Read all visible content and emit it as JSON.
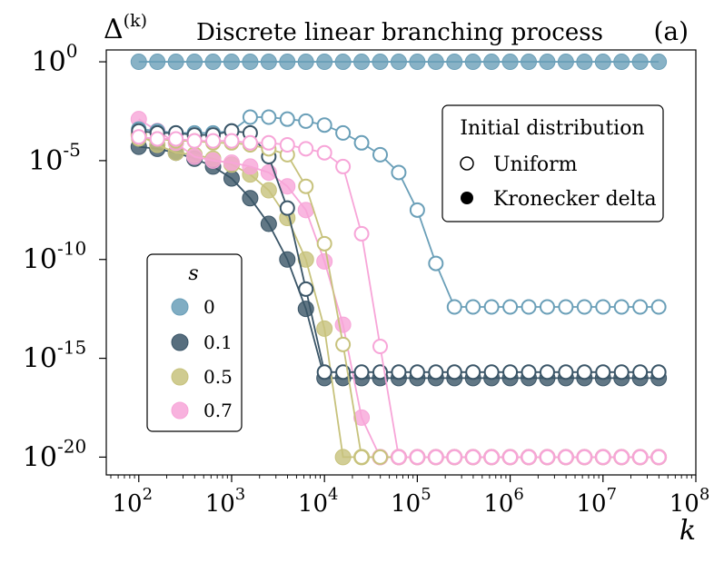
{
  "chart_data": {
    "type": "scatter",
    "title": "Discrete linear branching process",
    "panel_label": "(a)",
    "ylabel_base": "Δ",
    "ylabel_sup": "(k)",
    "xlabel": "k",
    "xscale": "log",
    "yscale": "log",
    "xlim_exp": [
      1.65,
      8.0
    ],
    "ylim_exp": [
      -20.9,
      0.6
    ],
    "x_ticks": [
      {
        "base": "10",
        "exp": "2"
      },
      {
        "base": "10",
        "exp": "3"
      },
      {
        "base": "10",
        "exp": "4"
      },
      {
        "base": "10",
        "exp": "5"
      },
      {
        "base": "10",
        "exp": "6"
      },
      {
        "base": "10",
        "exp": "7"
      },
      {
        "base": "10",
        "exp": "8"
      }
    ],
    "y_ticks": [
      {
        "base": "10",
        "exp": "0"
      },
      {
        "base": "10",
        "exp": "-5"
      },
      {
        "base": "10",
        "exp": "-10"
      },
      {
        "base": "10",
        "exp": "-15"
      },
      {
        "base": "10",
        "exp": "-20"
      }
    ],
    "legend_s": {
      "title": "s",
      "location": "center-left",
      "entries": [
        {
          "label": "0",
          "color": "#6a9fb8"
        },
        {
          "label": "0.1",
          "color": "#3a5567"
        },
        {
          "label": "0.5",
          "color": "#c7c27c"
        },
        {
          "label": "0.7",
          "color": "#f7a5d8"
        }
      ]
    },
    "legend_init": {
      "title": "Initial distribution",
      "location": "top-right",
      "entries": [
        {
          "label": "Uniform",
          "marker": "open-circle"
        },
        {
          "label": "Kronecker delta",
          "marker": "filled-circle"
        }
      ]
    },
    "series": [
      {
        "name": "s=0 Kronecker delta",
        "s": "0",
        "init": "Kronecker delta",
        "color": "#6a9fb8",
        "log10_k": [
          2.0,
          2.2,
          2.4,
          2.6,
          2.8,
          3.0,
          3.2,
          3.4,
          3.6,
          3.8,
          4.0,
          4.2,
          4.4,
          4.6,
          4.8,
          5.0,
          5.2,
          5.4,
          5.6,
          5.8,
          6.0,
          6.2,
          6.4,
          6.6,
          6.8,
          7.0,
          7.2,
          7.4,
          7.6
        ],
        "log10_delta": [
          0,
          0,
          0,
          0,
          0,
          0,
          0,
          0,
          0,
          0,
          0,
          0,
          0,
          0,
          0,
          0,
          0,
          0,
          0,
          0,
          0,
          0,
          0,
          0,
          0,
          0,
          0,
          0,
          0
        ]
      },
      {
        "name": "s=0 Uniform",
        "s": "0",
        "init": "Uniform",
        "color": "#6a9fb8",
        "log10_k": [
          2.0,
          2.2,
          2.4,
          2.6,
          2.8,
          3.0,
          3.2,
          3.4,
          3.6,
          3.8,
          4.0,
          4.2,
          4.4,
          4.6,
          4.8,
          5.0,
          5.2,
          5.4,
          5.6,
          5.8,
          6.0,
          6.2,
          6.4,
          6.6,
          6.8,
          7.0,
          7.2,
          7.4,
          7.6
        ],
        "log10_delta": [
          -3.4,
          -3.5,
          -3.6,
          -3.6,
          -3.6,
          -3.5,
          -2.8,
          -2.8,
          -2.9,
          -3.0,
          -3.2,
          -3.6,
          -4.1,
          -4.7,
          -5.6,
          -7.5,
          -10.2,
          -12.4,
          -12.4,
          -12.4,
          -12.4,
          -12.4,
          -12.4,
          -12.4,
          -12.4,
          -12.4,
          -12.4,
          -12.4,
          -12.4
        ]
      },
      {
        "name": "s=0.1 Kronecker delta",
        "s": "0.1",
        "init": "Kronecker delta",
        "color": "#3a5567",
        "log10_k": [
          2.0,
          2.2,
          2.4,
          2.6,
          2.8,
          3.0,
          3.2,
          3.4,
          3.6,
          3.8,
          4.0,
          4.2,
          4.4,
          4.6,
          4.8,
          5.0,
          5.2,
          5.4,
          5.6,
          5.8,
          6.0,
          6.2,
          6.4,
          6.6,
          6.8,
          7.0,
          7.2,
          7.4,
          7.6
        ],
        "log10_delta": [
          -4.3,
          -4.4,
          -4.6,
          -4.9,
          -5.3,
          -5.9,
          -6.9,
          -8.2,
          -10.0,
          -12.5,
          -16.0,
          -16.0,
          -16.0,
          -16.0,
          -16.0,
          -16.0,
          -16.0,
          -16.0,
          -16.0,
          -16.0,
          -16.0,
          -16.0,
          -16.0,
          -16.0,
          -16.0,
          -16.0,
          -16.0,
          -16.0,
          -16.0
        ]
      },
      {
        "name": "s=0.1 Uniform",
        "s": "0.1",
        "init": "Uniform",
        "color": "#3a5567",
        "log10_k": [
          2.0,
          2.2,
          2.4,
          2.6,
          2.8,
          3.0,
          3.2,
          3.4,
          3.6,
          3.8,
          4.0,
          4.2,
          4.4,
          4.6,
          4.8,
          5.0,
          5.2,
          5.4,
          5.6,
          5.8,
          6.0,
          6.2,
          6.4,
          6.6,
          6.8,
          7.0,
          7.2,
          7.4,
          7.6
        ],
        "log10_delta": [
          -3.5,
          -3.6,
          -3.6,
          -3.7,
          -3.7,
          -3.5,
          -3.6,
          -4.8,
          -7.4,
          -11.5,
          -15.7,
          -15.7,
          -15.7,
          -15.7,
          -15.7,
          -15.7,
          -15.7,
          -15.7,
          -15.7,
          -15.7,
          -15.7,
          -15.7,
          -15.7,
          -15.7,
          -15.7,
          -15.7,
          -15.7,
          -15.7,
          -15.7
        ]
      },
      {
        "name": "s=0.5 Kronecker delta",
        "s": "0.5",
        "init": "Kronecker delta",
        "color": "#c7c27c",
        "log10_k": [
          2.0,
          2.2,
          2.4,
          2.6,
          2.8,
          3.0,
          3.2,
          3.4,
          3.6,
          3.8,
          4.0,
          4.2,
          4.4,
          4.6,
          4.8,
          5.0,
          5.2,
          5.4,
          5.6,
          5.8,
          6.0,
          6.2,
          6.4,
          6.6,
          6.8,
          7.0,
          7.2,
          7.4,
          7.6
        ],
        "log10_delta": [
          -3.7,
          -4.2,
          -4.6,
          -4.7,
          -4.9,
          -5.2,
          -5.7,
          -6.5,
          -7.9,
          -10.0,
          -13.5,
          -20.0,
          -20.0,
          -20.0,
          -20.0,
          -20.0,
          -20.0,
          -20.0,
          -20.0,
          -20.0,
          -20.0,
          -20.0,
          -20.0,
          -20.0,
          -20.0,
          -20.0,
          -20.0,
          -20.0,
          -20.0
        ]
      },
      {
        "name": "s=0.5 Uniform",
        "s": "0.5",
        "init": "Uniform",
        "color": "#c7c27c",
        "log10_k": [
          2.0,
          2.2,
          2.4,
          2.6,
          2.8,
          3.0,
          3.2,
          3.4,
          3.6,
          3.8,
          4.0,
          4.2,
          4.4,
          4.6,
          4.8,
          5.0,
          5.2,
          5.4,
          5.6,
          5.8,
          6.0,
          6.2,
          6.4,
          6.6,
          6.8,
          7.0,
          7.2,
          7.4,
          7.6
        ],
        "log10_delta": [
          -3.9,
          -3.9,
          -4.0,
          -4.0,
          -4.1,
          -4.1,
          -4.2,
          -4.4,
          -4.7,
          -6.3,
          -9.2,
          -14.3,
          -20.0,
          -20.0,
          -20.0,
          -20.0,
          -20.0,
          -20.0,
          -20.0,
          -20.0,
          -20.0,
          -20.0,
          -20.0,
          -20.0,
          -20.0,
          -20.0,
          -20.0,
          -20.0,
          -20.0
        ]
      },
      {
        "name": "s=0.7 Kronecker delta",
        "s": "0.7",
        "init": "Kronecker delta",
        "color": "#f7a5d8",
        "log10_k": [
          2.0,
          2.2,
          2.4,
          2.6,
          2.8,
          3.0,
          3.2,
          3.4,
          3.6,
          3.8,
          4.0,
          4.2,
          4.4,
          4.6,
          4.8,
          5.0,
          5.2,
          5.4,
          5.6,
          5.8,
          6.0,
          6.2,
          6.4,
          6.6,
          6.8,
          7.0,
          7.2,
          7.4,
          7.6
        ],
        "log10_delta": [
          -2.9,
          -3.5,
          -4.1,
          -4.8,
          -5.0,
          -5.1,
          -5.3,
          -5.6,
          -6.3,
          -7.5,
          -10.1,
          -13.3,
          -18.0,
          -20.0,
          -20.0,
          -20.0,
          -20.0,
          -20.0,
          -20.0,
          -20.0,
          -20.0,
          -20.0,
          -20.0,
          -20.0,
          -20.0,
          -20.0,
          -20.0,
          -20.0,
          -20.0
        ]
      },
      {
        "name": "s=0.7 Uniform",
        "s": "0.7",
        "init": "Uniform",
        "color": "#f7a5d8",
        "log10_k": [
          2.0,
          2.2,
          2.4,
          2.6,
          2.8,
          3.0,
          3.2,
          3.4,
          3.6,
          3.8,
          4.0,
          4.2,
          4.4,
          4.6,
          4.8,
          5.0,
          5.2,
          5.4,
          5.6,
          5.8,
          6.0,
          6.2,
          6.4,
          6.6,
          6.8,
          7.0,
          7.2,
          7.4,
          7.6
        ],
        "log10_delta": [
          -3.8,
          -3.9,
          -3.9,
          -4.0,
          -4.0,
          -4.0,
          -4.1,
          -4.1,
          -4.2,
          -4.4,
          -4.6,
          -5.3,
          -8.7,
          -14.4,
          -20.0,
          -20.0,
          -20.0,
          -20.0,
          -20.0,
          -20.0,
          -20.0,
          -20.0,
          -20.0,
          -20.0,
          -20.0,
          -20.0,
          -20.0,
          -20.0,
          -20.0
        ]
      }
    ]
  }
}
